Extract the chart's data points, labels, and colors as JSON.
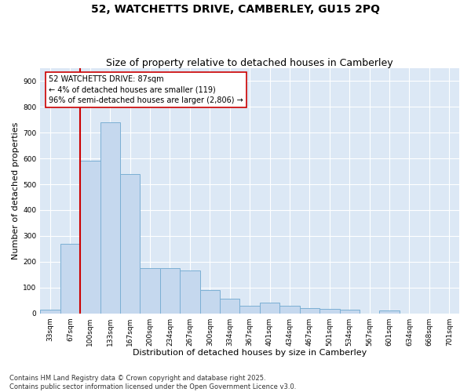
{
  "title": "52, WATCHETTS DRIVE, CAMBERLEY, GU15 2PQ",
  "subtitle": "Size of property relative to detached houses in Camberley",
  "xlabel": "Distribution of detached houses by size in Camberley",
  "ylabel": "Number of detached properties",
  "categories": [
    "33sqm",
    "67sqm",
    "100sqm",
    "133sqm",
    "167sqm",
    "200sqm",
    "234sqm",
    "267sqm",
    "300sqm",
    "334sqm",
    "367sqm",
    "401sqm",
    "434sqm",
    "467sqm",
    "501sqm",
    "534sqm",
    "567sqm",
    "601sqm",
    "634sqm",
    "668sqm",
    "701sqm"
  ],
  "values": [
    15,
    270,
    590,
    740,
    540,
    175,
    175,
    165,
    90,
    55,
    30,
    42,
    30,
    20,
    18,
    15,
    0,
    10,
    0,
    0,
    0
  ],
  "bar_color": "#c5d8ee",
  "bar_edge_color": "#7bafd4",
  "vline_x": 1.5,
  "vline_color": "#cc0000",
  "annotation_text": "52 WATCHETTS DRIVE: 87sqm\n← 4% of detached houses are smaller (119)\n96% of semi-detached houses are larger (2,806) →",
  "annotation_box_color": "#ffffff",
  "annotation_box_edge": "#cc0000",
  "ylim": [
    0,
    950
  ],
  "yticks": [
    0,
    100,
    200,
    300,
    400,
    500,
    600,
    700,
    800,
    900
  ],
  "background_color": "#dce8f5",
  "plot_bg_color": "#dce8f5",
  "grid_color": "#ffffff",
  "footnote": "Contains HM Land Registry data © Crown copyright and database right 2025.\nContains public sector information licensed under the Open Government Licence v3.0.",
  "title_fontsize": 10,
  "subtitle_fontsize": 9,
  "xlabel_fontsize": 8,
  "ylabel_fontsize": 8,
  "tick_fontsize": 6.5,
  "annotation_fontsize": 7,
  "footnote_fontsize": 6
}
